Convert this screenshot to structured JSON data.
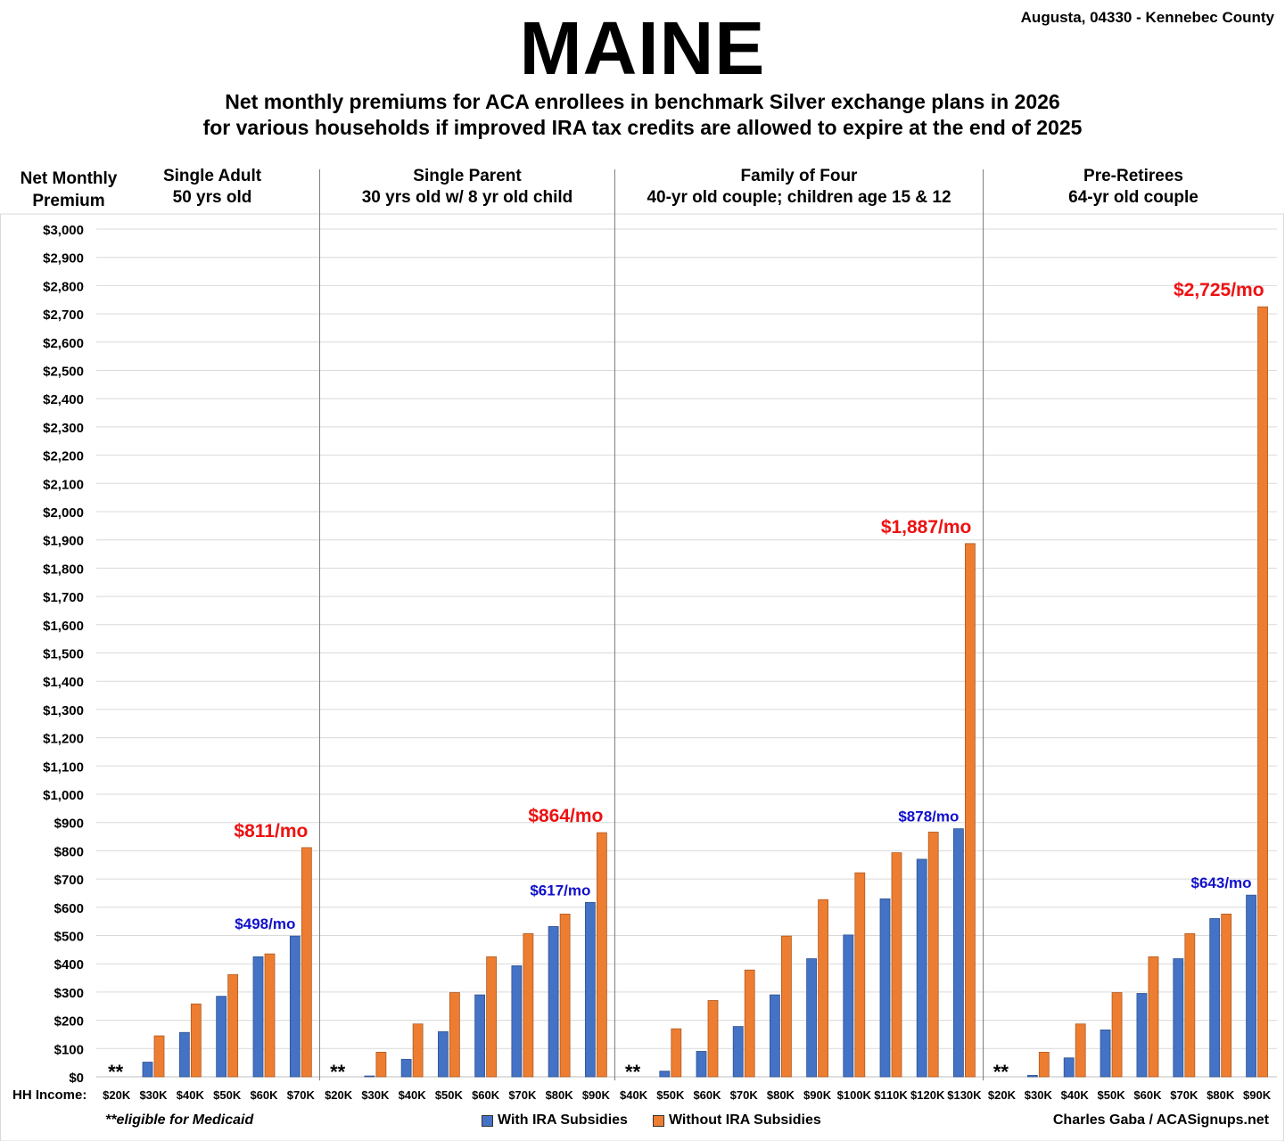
{
  "page": {
    "title": "MAINE",
    "location": "Augusta, 04330 - Kennebec County",
    "subtitle_line1": "Net monthly premiums for ACA enrollees in benchmark Silver exchange plans in 2026",
    "subtitle_line2": "for various households if improved IRA tax credits are allowed to expire at the end of 2025",
    "ylabel_line1": "Net Monthly",
    "ylabel_line2": "Premium",
    "x_row_label": "HH Income:",
    "footnote": "**eligible for Medicaid",
    "credit": "Charles Gaba / ACASignups.net",
    "legend": {
      "with": "With IRA Subsidies",
      "without": "Without IRA Subsidies"
    }
  },
  "colors": {
    "with": "#4472C4",
    "without": "#ED7D31",
    "label_with": "#1010CC",
    "label_without": "#EE1111",
    "grid": "#D9D9D9",
    "divider": "#7F7F7F"
  },
  "chart_data": {
    "type": "bar",
    "ylim": [
      0,
      3000
    ],
    "ytick_step": 100,
    "grid": true,
    "legend_position": "bottom",
    "medicaid_marker": "**",
    "series_names": [
      "With IRA Subsidies",
      "Without IRA Subsidies"
    ],
    "groups": [
      {
        "name": "Single Adult",
        "subtitle": "50 yrs old",
        "categories": [
          "$20K",
          "$30K",
          "$40K",
          "$50K",
          "$60K",
          "$70K"
        ],
        "with": [
          0,
          52,
          157,
          285,
          425,
          498
        ],
        "without": [
          0,
          145,
          258,
          362,
          435,
          811
        ],
        "medicaid": [
          true,
          false,
          false,
          false,
          false,
          false
        ],
        "callouts": [
          {
            "series": "with",
            "index": 5,
            "text": "$498/mo"
          },
          {
            "series": "without",
            "index": 5,
            "text": "$811/mo"
          }
        ]
      },
      {
        "name": "Single Parent",
        "subtitle": "30 yrs old w/ 8 yr old child",
        "categories": [
          "$20K",
          "$30K",
          "$40K",
          "$50K",
          "$60K",
          "$70K",
          "$80K",
          "$90K"
        ],
        "with": [
          0,
          3,
          62,
          160,
          290,
          393,
          532,
          617
        ],
        "without": [
          0,
          87,
          187,
          298,
          425,
          507,
          576,
          864
        ],
        "medicaid": [
          true,
          false,
          false,
          false,
          false,
          false,
          false,
          false
        ],
        "callouts": [
          {
            "series": "with",
            "index": 7,
            "text": "$617/mo"
          },
          {
            "series": "without",
            "index": 7,
            "text": "$864/mo"
          }
        ]
      },
      {
        "name": "Family of Four",
        "subtitle": "40-yr old couple; children age 15 & 12",
        "categories": [
          "$40K",
          "$50K",
          "$60K",
          "$70K",
          "$80K",
          "$90K",
          "$100K",
          "$110K",
          "$120K",
          "$130K"
        ],
        "with": [
          0,
          20,
          90,
          178,
          290,
          418,
          502,
          630,
          770,
          878
        ],
        "without": [
          0,
          170,
          270,
          378,
          498,
          627,
          722,
          793,
          866,
          1887
        ],
        "medicaid": [
          true,
          false,
          false,
          false,
          false,
          false,
          false,
          false,
          false,
          false
        ],
        "callouts": [
          {
            "series": "with",
            "index": 9,
            "text": "$878/mo"
          },
          {
            "series": "without",
            "index": 9,
            "text": "$1,887/mo"
          }
        ]
      },
      {
        "name": "Pre-Retirees",
        "subtitle": "64-yr old couple",
        "categories": [
          "$20K",
          "$30K",
          "$40K",
          "$50K",
          "$60K",
          "$70K",
          "$80K",
          "$90K"
        ],
        "with": [
          0,
          5,
          67,
          166,
          295,
          418,
          560,
          643
        ],
        "without": [
          0,
          87,
          187,
          298,
          425,
          507,
          576,
          2725
        ],
        "medicaid": [
          true,
          false,
          false,
          false,
          false,
          false,
          false,
          false
        ],
        "callouts": [
          {
            "series": "with",
            "index": 7,
            "text": "$643/mo"
          },
          {
            "series": "without",
            "index": 7,
            "text": "$2,725/mo"
          }
        ]
      }
    ]
  }
}
